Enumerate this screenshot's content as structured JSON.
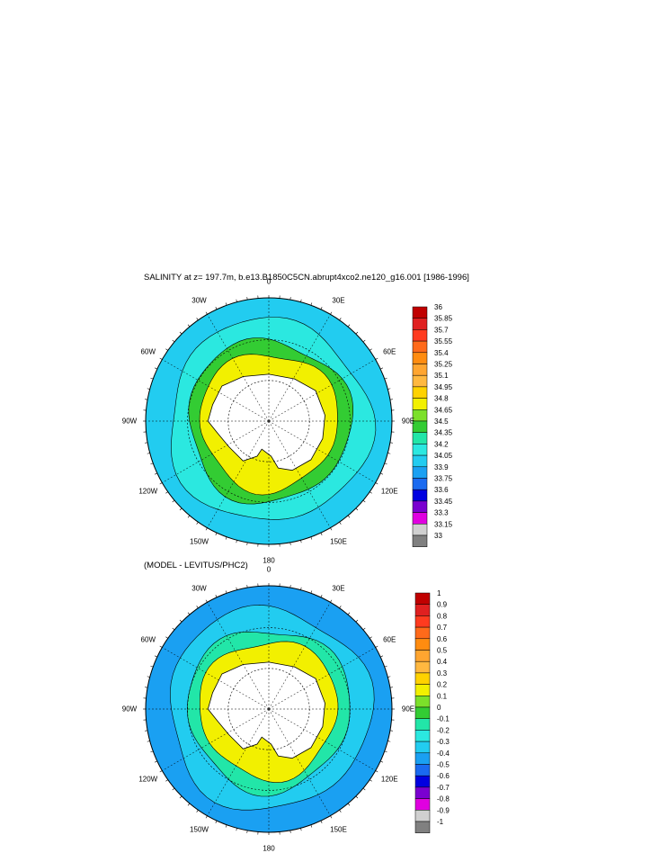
{
  "figure": {
    "title": "SALINITY at z= 197.7m, b.e13.B1850C5CN.abrupt4xco2.ne120_g16.001 [1986-1996]",
    "subtitle": "(MODEL - LEVITUS/PHC2)"
  },
  "chart_data": [
    {
      "type": "heatmap",
      "projection": "south-polar-stereographic",
      "variable": "SALINITY",
      "depth": "197.7m",
      "lon_labels": [
        "0",
        "30E",
        "60E",
        "90E",
        "120E",
        "150E",
        "180",
        "150W",
        "120W",
        "90W",
        "60W",
        "30W"
      ],
      "colorbar": {
        "levels": [
          "36",
          "35.85",
          "35.7",
          "35.55",
          "35.4",
          "35.25",
          "35.1",
          "34.95",
          "34.8",
          "34.65",
          "34.5",
          "34.35",
          "34.2",
          "34.05",
          "33.9",
          "33.75",
          "33.6",
          "33.45",
          "33.3",
          "33.15",
          "33"
        ],
        "colors": [
          "#c00000",
          "#e02020",
          "#ff3b1f",
          "#ff6a1a",
          "#ff8c10",
          "#ffa530",
          "#ffb840",
          "#ffd200",
          "#f2f000",
          "#7ce02a",
          "#33cc33",
          "#22e6a8",
          "#2be8e0",
          "#22ccf0",
          "#1aa0f2",
          "#1a6af0",
          "#0000e0",
          "#7a00d0",
          "#e000e0",
          "#d0d0d0",
          "#808080"
        ]
      },
      "regions": [
        {
          "name": "antarctica",
          "value": "land"
        },
        {
          "name": "inner-ring",
          "value": 34.65
        },
        {
          "name": "middle-ring",
          "value": 34.35
        },
        {
          "name": "outer-ring",
          "value": 34.05
        },
        {
          "name": "far-field",
          "value": 33.9
        }
      ]
    },
    {
      "type": "heatmap",
      "projection": "south-polar-stereographic",
      "variable": "MODEL - LEVITUS/PHC2",
      "lon_labels": [
        "0",
        "30E",
        "60E",
        "90E",
        "120E",
        "150E",
        "180",
        "150W",
        "120W",
        "90W",
        "60W",
        "30W"
      ],
      "colorbar": {
        "levels": [
          "1",
          "0.9",
          "0.8",
          "0.7",
          "0.6",
          "0.5",
          "0.4",
          "0.3",
          "0.2",
          "0.1",
          "0",
          "-0.1",
          "-0.2",
          "-0.3",
          "-0.4",
          "-0.5",
          "-0.6",
          "-0.7",
          "-0.8",
          "-0.9",
          "-1"
        ],
        "colors": [
          "#c00000",
          "#e02020",
          "#ff3b1f",
          "#ff6a1a",
          "#ff8c10",
          "#ffa530",
          "#ffb840",
          "#ffd200",
          "#f2f000",
          "#7ce02a",
          "#33cc33",
          "#22e6a8",
          "#2be8e0",
          "#22ccf0",
          "#1aa0f2",
          "#1a6af0",
          "#0000e0",
          "#7a00d0",
          "#e000e0",
          "#d0d0d0",
          "#808080"
        ]
      },
      "regions": [
        {
          "name": "antarctica",
          "value": "land"
        },
        {
          "name": "inner-ring",
          "value": 0.15
        },
        {
          "name": "middle-ring",
          "value": -0.15
        },
        {
          "name": "outer-ring",
          "value": -0.35
        },
        {
          "name": "far-field",
          "value": -0.45
        }
      ]
    }
  ]
}
